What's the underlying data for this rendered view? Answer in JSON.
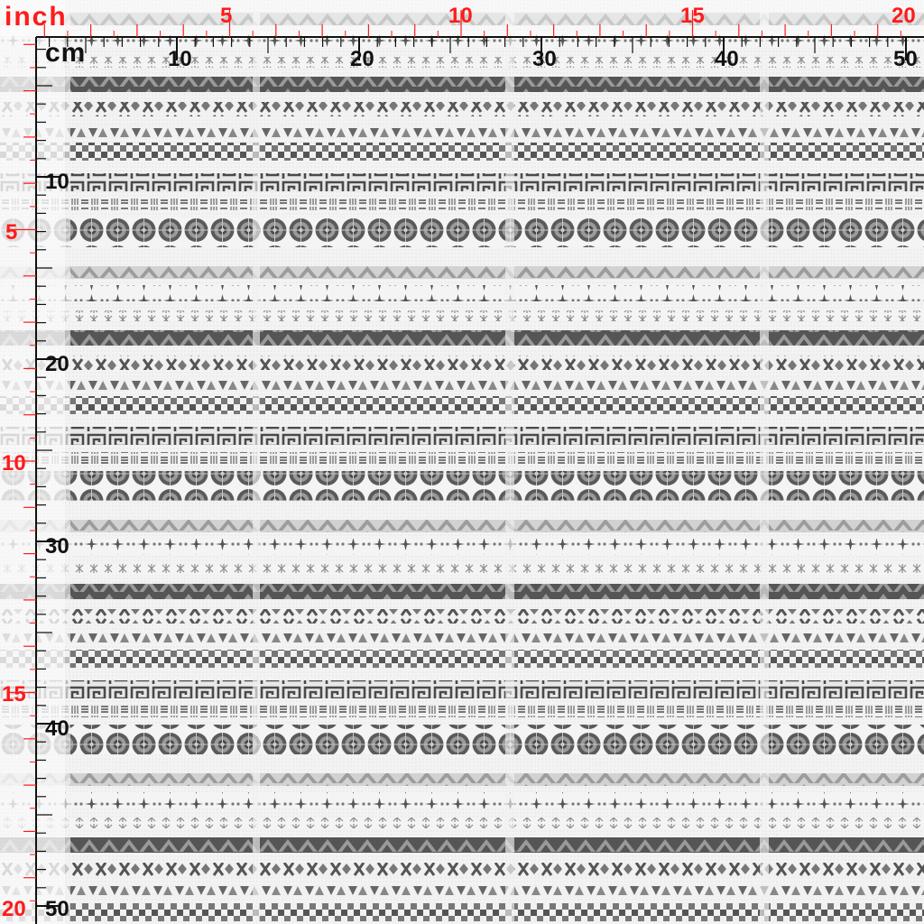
{
  "rulers": {
    "inch_unit_label": "inch",
    "cm_unit_label": "cm",
    "inch_top_labels": [
      "5",
      "10",
      "15",
      "20"
    ],
    "cm_top_labels": [
      "10",
      "20",
      "30",
      "40",
      "50"
    ],
    "inch_left_labels": [
      "5",
      "10",
      "15",
      "20"
    ],
    "cm_left_labels": [
      "10",
      "20",
      "30",
      "40",
      "50"
    ],
    "inch_color": "#ff1a1a",
    "cm_color": "#111111"
  },
  "pattern": {
    "description_style": "tribal border stripes",
    "motif_bands": [
      "triangle-zigzag-band",
      "x-chevron-band",
      "small-triangle-row",
      "checker-band",
      "greek-key-band",
      "dash-tick-band",
      "medallion-circle-band",
      "triangle-zigzag-light-band",
      "star-flower-row",
      "asterisk-row"
    ],
    "colors": {
      "background": "#f4f4f4",
      "dark": "#4a4a4a",
      "mid": "#7a7a7a",
      "light": "#b4b4b4"
    }
  }
}
